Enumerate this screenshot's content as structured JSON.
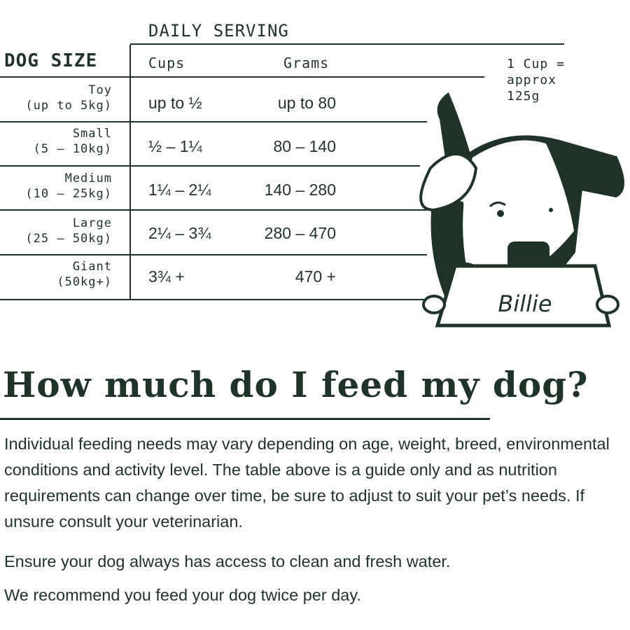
{
  "table": {
    "group_header": "DAILY SERVING",
    "col_size": "DOG SIZE",
    "col_cups": "Cups",
    "col_grams": "Grams",
    "rows": [
      {
        "size": "Toy",
        "range": "(up to 5kg)",
        "cups": "up to ½",
        "grams": "up to 80"
      },
      {
        "size": "Small",
        "range": "(5 – 10kg)",
        "cups": "½ – 1¼",
        "grams": "80 – 140"
      },
      {
        "size": "Medium",
        "range": "(10 – 25kg)",
        "cups": "1¼ – 2¼",
        "grams": "140 – 280"
      },
      {
        "size": "Large",
        "range": "(25 – 50kg)",
        "cups": "2¼ – 3¾",
        "grams": "280 – 470"
      },
      {
        "size": "Giant",
        "range": "(50kg+)",
        "cups": "3¾ +",
        "grams": "470 +"
      }
    ]
  },
  "cup_note": {
    "line1": "1 Cup =",
    "line2": "approx",
    "line3": "125g"
  },
  "illustration": {
    "bowl_name": "Billie"
  },
  "title": "How much do I feed my dog?",
  "paragraphs": [
    "Individual feeding needs may vary depending on age, weight, breed, environmental conditions and activity level. The table above is a guide only and as nutrition requirements can change over time, be sure to adjust to suit your pet’s needs. If unsure consult your veterinarian.",
    "Ensure your dog always has access to clean and fresh water.",
    "We recommend you feed your dog twice per day."
  ],
  "colors": {
    "ink": "#1f3329",
    "background": "#ffffff"
  }
}
